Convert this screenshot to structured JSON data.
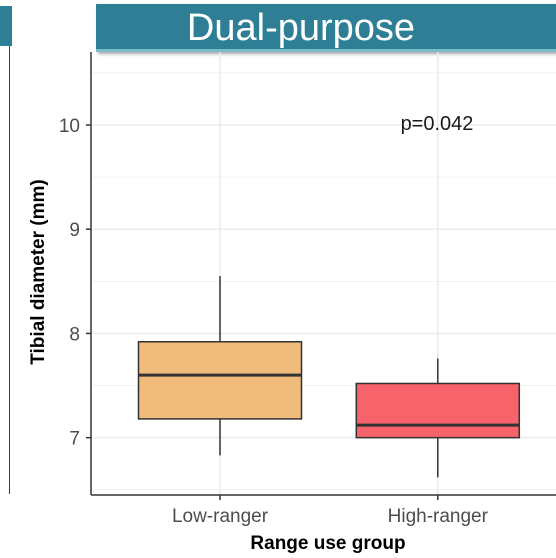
{
  "banner": {
    "title": "Dual-purpose"
  },
  "colors": {
    "banner": "#2e7f95",
    "low": "#f0bb7b",
    "high": "#f7636a",
    "grid": "#ebebeb"
  },
  "chart_data": {
    "type": "box",
    "title": "",
    "xlabel": "Range use group",
    "ylabel": "Tibial diameter (mm)",
    "annotation": "p=0.042",
    "categories": [
      "Low-ranger",
      "High-ranger"
    ],
    "ylim": [
      6.45,
      10.7
    ],
    "yticks": [
      7,
      8,
      9,
      10
    ],
    "boxes": [
      {
        "category": "Low-ranger",
        "whisker_low": 6.83,
        "q1": 7.18,
        "median": 7.6,
        "q3": 7.92,
        "whisker_high": 8.55,
        "color": "#f0bb7b"
      },
      {
        "category": "High-ranger",
        "whisker_low": 6.62,
        "q1": 7.0,
        "median": 7.12,
        "q3": 7.52,
        "whisker_high": 7.76,
        "color": "#f7636a"
      }
    ],
    "grid": true,
    "legend": "none"
  }
}
